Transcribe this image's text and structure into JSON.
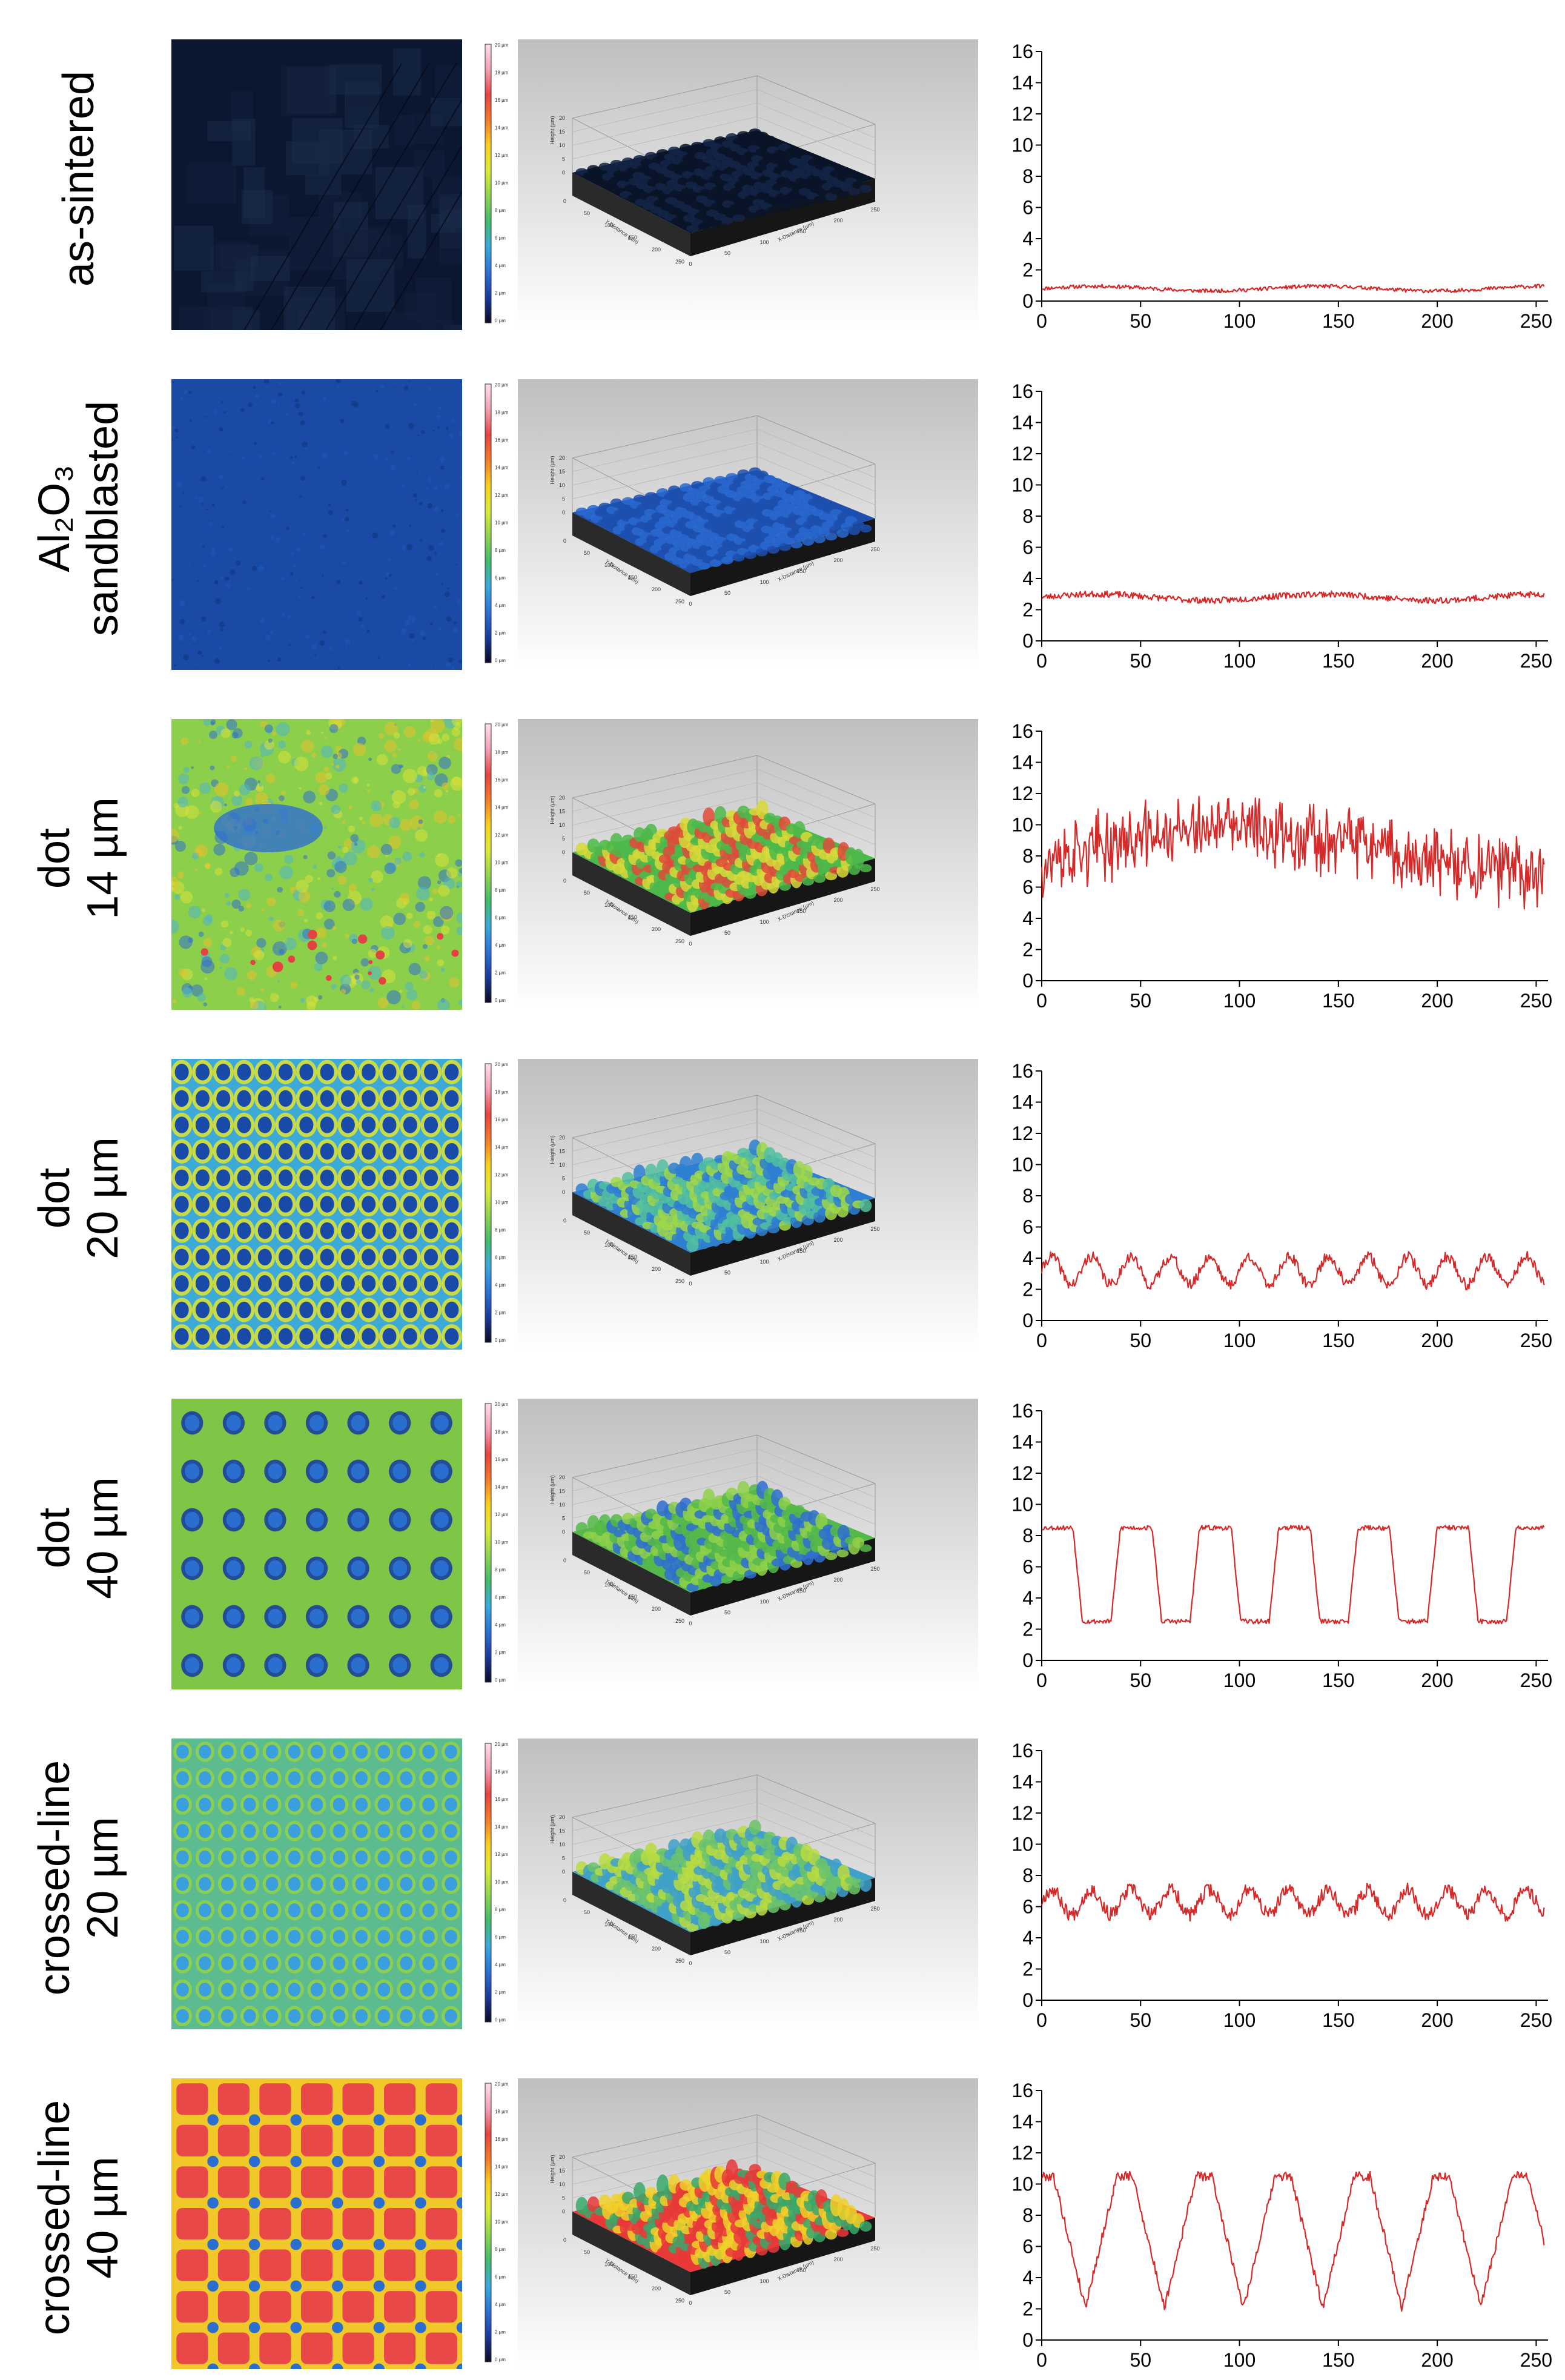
{
  "colorbar": {
    "ticks": [
      "20 µm",
      "18 µm",
      "16 µm",
      "14 µm",
      "12 µm",
      "10 µm",
      "8 µm",
      "6 µm",
      "4 µm",
      "2 µm",
      "0 µm"
    ],
    "colors": [
      "#ffdde8",
      "#f0a0b4",
      "#e34242",
      "#f07a2a",
      "#f6cf20",
      "#d9e83a",
      "#8fd14f",
      "#42b96c",
      "#39a8d8",
      "#2c6fd1",
      "#1b3a9a",
      "#0a0a22"
    ]
  },
  "view3d": {
    "axis_x_label": "X-Distance (µm)",
    "axis_y_label": "Y-Distance (µm)",
    "axis_z_label": "Height (µm)",
    "z_ticks": [
      "20",
      "15",
      "10",
      "5",
      "0"
    ],
    "xy_ticks": [
      "0",
      "50",
      "100",
      "150",
      "200",
      "250"
    ]
  },
  "chart_data": [
    {
      "type": "line",
      "title": "as-sintered",
      "label_lines": [
        "as-sintered"
      ],
      "xlim": [
        0,
        256
      ],
      "ylim": [
        0,
        16
      ],
      "xticks": [
        0,
        50,
        100,
        150,
        200,
        250
      ],
      "yticks": [
        0,
        2,
        4,
        6,
        8,
        10,
        12,
        14,
        16
      ],
      "xlabel": "",
      "ylabel": "",
      "color": "#d42a2a",
      "pattern": "flat",
      "base": 0.8,
      "amplitude": 0.15,
      "period": 0,
      "noise": 0.12,
      "seed": 11,
      "map_colors": [
        "#0b1630",
        "#12203c",
        "#1a2b4a"
      ],
      "map_pattern": "scratches",
      "surface_colors": [
        "#0a1428",
        "#142448"
      ],
      "relief": 0.02
    },
    {
      "type": "line",
      "title": "Al2O3 sandblasted",
      "label_lines": [
        "Al₂O₃",
        "sandblasted"
      ],
      "xlim": [
        0,
        256
      ],
      "ylim": [
        0,
        16
      ],
      "xticks": [
        0,
        50,
        100,
        150,
        200,
        250
      ],
      "yticks": [
        0,
        2,
        4,
        6,
        8,
        10,
        12,
        14,
        16
      ],
      "xlabel": "",
      "ylabel": "",
      "color": "#d42a2a",
      "pattern": "flat",
      "base": 2.8,
      "amplitude": 0.2,
      "period": 0,
      "noise": 0.2,
      "seed": 23,
      "map_colors": [
        "#1a4aa5",
        "#1d52b3",
        "#123a88"
      ],
      "map_pattern": "speckle",
      "surface_colors": [
        "#1d4fae",
        "#2a68d0"
      ],
      "relief": 0.05
    },
    {
      "type": "line",
      "title": "dot 14 µm",
      "label_lines": [
        "dot",
        "14 µm"
      ],
      "xlim": [
        0,
        256
      ],
      "ylim": [
        0,
        16
      ],
      "xticks": [
        0,
        50,
        100,
        150,
        200,
        250
      ],
      "yticks": [
        0,
        2,
        4,
        6,
        8,
        10,
        12,
        14,
        16
      ],
      "xlabel": "",
      "ylabel": "",
      "color": "#d42a2a",
      "pattern": "noisy",
      "base": 7.5,
      "amplitude": 1.8,
      "period": 0,
      "noise": 1.2,
      "seed": 37,
      "map_colors": [
        "#8ccf4a",
        "#d9e23c",
        "#4fb7c9",
        "#2f6fd0",
        "#e3c22b"
      ],
      "map_pattern": "blotch",
      "surface_colors": [
        "#4db84a",
        "#d8d83a",
        "#e04a3a"
      ],
      "relief": 0.35
    },
    {
      "type": "line",
      "title": "dot 20 µm",
      "label_lines": [
        "dot",
        "20 µm"
      ],
      "xlim": [
        0,
        256
      ],
      "ylim": [
        0,
        16
      ],
      "xticks": [
        0,
        50,
        100,
        150,
        200,
        250
      ],
      "yticks": [
        0,
        2,
        4,
        6,
        8,
        10,
        12,
        14,
        16
      ],
      "xlabel": "",
      "ylabel": "",
      "color": "#d42a2a",
      "pattern": "wave",
      "base": 3.2,
      "amplitude": 0.9,
      "period": 20,
      "noise": 0.35,
      "seed": 41,
      "map_colors": [
        "#3ca9d6",
        "#1a4aa8",
        "#d6df3a"
      ],
      "map_pattern": "dotgrid",
      "map_grid": [
        11,
        14
      ],
      "map_dot": 0.42,
      "surface_colors": [
        "#2f7fd0",
        "#52c0a0",
        "#9fd84a"
      ],
      "relief": 0.28
    },
    {
      "type": "line",
      "title": "dot 40 µm",
      "label_lines": [
        "dot",
        "40 µm"
      ],
      "xlim": [
        0,
        256
      ],
      "ylim": [
        0,
        16
      ],
      "xticks": [
        0,
        50,
        100,
        150,
        200,
        250
      ],
      "yticks": [
        0,
        2,
        4,
        6,
        8,
        10,
        12,
        14,
        16
      ],
      "xlabel": "",
      "ylabel": "",
      "color": "#d42a2a",
      "pattern": "square",
      "base": 5.5,
      "amplitude": 3.0,
      "period": 40,
      "noise": 0.15,
      "seed": 53,
      "map_colors": [
        "#7fc646",
        "#2a6fd0",
        "#1a3f9c"
      ],
      "map_pattern": "dotgrid",
      "map_grid": [
        6,
        7
      ],
      "map_dot": 0.22,
      "surface_colors": [
        "#55b84a",
        "#8fd04a",
        "#2f6fd0"
      ],
      "relief": 0.3
    },
    {
      "type": "line",
      "title": "crossed-line 20 µm",
      "label_lines": [
        "crossed-line",
        "20 µm"
      ],
      "xlim": [
        0,
        256
      ],
      "ylim": [
        0,
        16
      ],
      "xticks": [
        0,
        50,
        100,
        150,
        200,
        250
      ],
      "yticks": [
        0,
        2,
        4,
        6,
        8,
        10,
        12,
        14,
        16
      ],
      "xlabel": "",
      "ylabel": "",
      "color": "#d42a2a",
      "pattern": "wave",
      "base": 6.3,
      "amplitude": 0.8,
      "period": 20,
      "noise": 0.45,
      "seed": 67,
      "map_colors": [
        "#5cbc90",
        "#3a9fdc",
        "#8fd04a"
      ],
      "map_pattern": "dotgrid",
      "map_grid": [
        11,
        13
      ],
      "map_dot": 0.35,
      "surface_colors": [
        "#3fa0c8",
        "#6cc46a",
        "#b8dc40"
      ],
      "relief": 0.3
    },
    {
      "type": "line",
      "title": "crossed-line 40 µm",
      "label_lines": [
        "crossed-line",
        "40 µm"
      ],
      "xlim": [
        0,
        256
      ],
      "ylim": [
        0,
        16
      ],
      "xticks": [
        0,
        50,
        100,
        150,
        200,
        250
      ],
      "yticks": [
        0,
        2,
        4,
        6,
        8,
        10,
        12,
        14,
        16
      ],
      "xlabel": "",
      "ylabel": "",
      "color": "#d42a2a",
      "pattern": "triangle",
      "base": 6.3,
      "amplitude": 4.2,
      "period": 40,
      "noise": 0.3,
      "seed": 79,
      "map_colors": [
        "#f0c82a",
        "#e84848",
        "#2a6fd0"
      ],
      "map_pattern": "cells",
      "map_grid": [
        7,
        7
      ],
      "map_dot": 0.3,
      "surface_colors": [
        "#e83a3a",
        "#f0d02a",
        "#3aa86a"
      ],
      "relief": 0.45
    }
  ]
}
